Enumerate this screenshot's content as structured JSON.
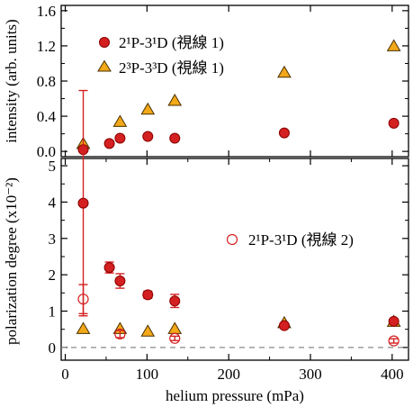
{
  "chart_data": [
    {
      "type": "scatter",
      "ylabel": "intensity (arb. units)",
      "ylim": [
        -0.06,
        1.66
      ],
      "yticks": [
        "0.0",
        "0.4",
        "0.8",
        "1.2",
        "1.6"
      ],
      "ytick_values": [
        0,
        0.4,
        0.8,
        1.2,
        1.6
      ],
      "legend": "top-left",
      "series": [
        {
          "name": "2¹P-3¹D (視線 1)",
          "marker": "circle-filled",
          "color": "#d42020",
          "points": [
            {
              "x": 22,
              "y": 0.02
            },
            {
              "x": 54,
              "y": 0.09
            },
            {
              "x": 67,
              "y": 0.15
            },
            {
              "x": 101,
              "y": 0.17
            },
            {
              "x": 134,
              "y": 0.15
            },
            {
              "x": 268,
              "y": 0.21
            },
            {
              "x": 402,
              "y": 0.32
            }
          ]
        },
        {
          "name": "2³P-3³D (視線 1)",
          "marker": "triangle-filled",
          "color": "#f2a818",
          "points": [
            {
              "x": 22,
              "y": 0.09
            },
            {
              "x": 67,
              "y": 0.34
            },
            {
              "x": 101,
              "y": 0.48
            },
            {
              "x": 134,
              "y": 0.58
            },
            {
              "x": 268,
              "y": 0.9
            },
            {
              "x": 402,
              "y": 1.2
            }
          ]
        }
      ]
    },
    {
      "type": "scatter",
      "ylabel": "polarization degree (x10⁻²)",
      "xlabel": "helium pressure (mPa)",
      "xlim": [
        -5,
        420
      ],
      "xticks": [
        "0",
        "100",
        "200",
        "300",
        "400"
      ],
      "xtick_values": [
        0,
        100,
        200,
        300,
        400
      ],
      "ylim": [
        -0.35,
        5.2
      ],
      "yticks": [
        "0",
        "1",
        "2",
        "3",
        "4",
        "5"
      ],
      "ytick_values": [
        0,
        1,
        2,
        3,
        4,
        5
      ],
      "reference_line": {
        "y": 0,
        "style": "dashed"
      },
      "legend": "right",
      "series": [
        {
          "name": "",
          "marker": "circle-filled",
          "color": "#d42020",
          "points": [
            {
              "x": 22,
              "y": 3.97,
              "err": 3.1
            },
            {
              "x": 54,
              "y": 2.2,
              "err": 0.15
            },
            {
              "x": 67,
              "y": 1.83,
              "err": 0.2
            },
            {
              "x": 101,
              "y": 1.45,
              "err": 0.1
            },
            {
              "x": 134,
              "y": 1.28,
              "err": 0.18
            },
            {
              "x": 268,
              "y": 0.6,
              "err": 0.05
            },
            {
              "x": 402,
              "y": 0.72,
              "err": 0.05
            }
          ]
        },
        {
          "name": "",
          "marker": "triangle-filled",
          "color": "#f2a818",
          "points": [
            {
              "x": 22,
              "y": 0.52
            },
            {
              "x": 67,
              "y": 0.52
            },
            {
              "x": 101,
              "y": 0.45
            },
            {
              "x": 134,
              "y": 0.52
            },
            {
              "x": 268,
              "y": 0.68
            },
            {
              "x": 402,
              "y": 0.72
            }
          ]
        },
        {
          "name": "2¹P-3¹D (視線 2)",
          "marker": "circle-open",
          "color": "#d42020",
          "points": [
            {
              "x": 22,
              "y": 1.33,
              "err": 0.4
            },
            {
              "x": 67,
              "y": 0.37,
              "err": 0.1
            },
            {
              "x": 134,
              "y": 0.25,
              "err": 0.06
            },
            {
              "x": 402,
              "y": 0.18,
              "err": 0.06
            }
          ]
        }
      ]
    }
  ]
}
